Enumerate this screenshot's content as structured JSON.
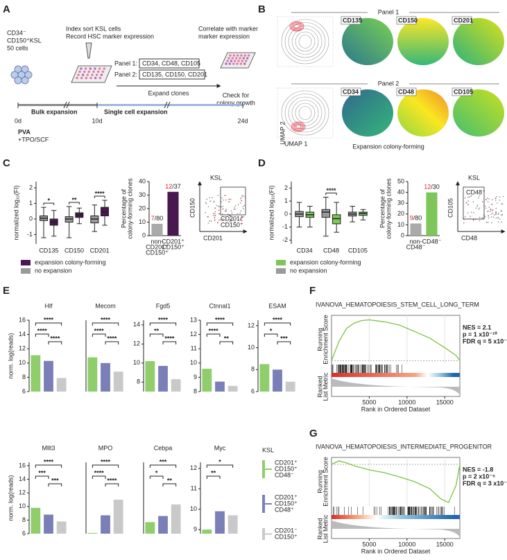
{
  "figure": {
    "panel_letters": [
      "A",
      "B",
      "C",
      "D",
      "E",
      "F",
      "G"
    ],
    "schematic": {
      "cells": [
        "CD34⁻",
        "CD150⁺KSL",
        "50 cells"
      ],
      "index_sort": "Index sort KSL cells",
      "record": "Record HSC marker expression",
      "panel1_label": "Panel 1:",
      "panel1_markers": "CD34, CD48, CD105",
      "panel2_label": "Panel 2:",
      "panel2_markers": "CD135, CD150, CD201",
      "expand": "Expand clones",
      "correlate": [
        "Correlate with marker",
        "marker expression"
      ],
      "check": [
        "Check for",
        "colony growth"
      ],
      "bulk": "Bulk expansion",
      "single": "Single cell expansion",
      "days": [
        "0d",
        "10d",
        "24d"
      ],
      "media": [
        "PVA",
        "+TPO/SCF"
      ]
    },
    "umap": {
      "panel1": "Panel 1",
      "panel1_markers": [
        "CD135",
        "CD150",
        "CD201"
      ],
      "panel2": "Panel 2",
      "panel2_markers": [
        "CD34",
        "CD48",
        "CD105"
      ],
      "y_label": "UMAP 2",
      "x_label": "UMAP 1",
      "caption": "Expansion colony-forming"
    },
    "gates": {
      "c": {
        "title": "KSL",
        "y_label": "CD150",
        "x_label": "CD201",
        "gate": [
          "CD201⁺",
          "CD150⁺"
        ]
      },
      "d": {
        "title": "KSL",
        "y_label": "CD105",
        "x_label": "CD48",
        "gate": [
          "CD48⁻"
        ]
      }
    },
    "e_legend": {
      "title": "KSL",
      "items": [
        [
          "CD201⁺",
          "CD150⁺",
          "CD48⁻"
        ],
        [
          "CD201⁺",
          "CD150⁺",
          "CD48⁺"
        ],
        [
          "CD201⁻",
          "CD150⁺"
        ]
      ],
      "colors": [
        "#8fce6a",
        "#7b7fb8",
        "#c9c9c9"
      ]
    }
  },
  "chart_data": [
    {
      "type": "box",
      "y_label": "normalized log₁₀(FI)",
      "categories": [
        "CD135",
        "CD150",
        "CD201"
      ],
      "series": [
        {
          "name": "no expansion",
          "color": "#9a9a9a",
          "min": [
            -1.2,
            -1.2,
            -0.8
          ],
          "q1": [
            -0.1,
            -0.2,
            -0.25
          ],
          "median": [
            0.05,
            0,
            0
          ],
          "q3": [
            0.2,
            0.15,
            0.2
          ],
          "max": [
            0.75,
            0.8,
            0.9
          ]
        },
        {
          "name": "expansion colony-forming",
          "color": "#4a1850",
          "min": [
            -1.1,
            -0.3,
            -0.4
          ],
          "q1": [
            -0.4,
            0.1,
            0.2
          ],
          "median": [
            -0.2,
            0.25,
            0.45
          ],
          "q3": [
            0,
            0.4,
            0.75
          ],
          "max": [
            0.55,
            0.7,
            1.2
          ]
        }
      ],
      "significance": [
        "*",
        "**",
        "****"
      ],
      "ylim": [
        -1.6,
        2.4
      ],
      "yticks": [
        -1,
        0,
        1,
        2
      ]
    },
    {
      "type": "bar",
      "y_label": [
        "Percentage of",
        "colony-forming clones"
      ],
      "categories": [
        [
          "non-",
          "CD201⁺",
          "CD150⁺"
        ],
        [
          "CD201⁺",
          "CD150⁺"
        ]
      ],
      "values": [
        8.75,
        32.43
      ],
      "value_labels": [
        "7/80",
        "12/37"
      ],
      "colors": [
        "#aaaaaa",
        "#4a1850"
      ],
      "ylim": [
        0,
        40
      ],
      "yticks": [
        0,
        10,
        20,
        30,
        40
      ]
    },
    {
      "type": "box",
      "y_label": "normalized log₁₀(FI)",
      "categories": [
        "CD34",
        "CD48",
        "CD105"
      ],
      "series": [
        {
          "name": "no expansion",
          "color": "#9a9a9a",
          "min": [
            -1.0,
            -1.7,
            -0.6
          ],
          "q1": [
            -0.2,
            -0.25,
            -0.15
          ],
          "median": [
            0,
            0.15,
            0
          ],
          "q3": [
            0.2,
            0.35,
            0.15
          ],
          "max": [
            0.9,
            1.3,
            0.6
          ]
        },
        {
          "name": "expansion colony-forming",
          "color": "#7cc65a",
          "min": [
            -1.0,
            -1.4,
            -0.45
          ],
          "q1": [
            -0.25,
            -0.75,
            -0.1
          ],
          "median": [
            -0.05,
            -0.35,
            0.05
          ],
          "q3": [
            0.15,
            -0.05,
            0.15
          ],
          "max": [
            0.6,
            0.9,
            0.35
          ]
        }
      ],
      "significance": [
        null,
        "****",
        null
      ],
      "ylim": [
        -2.3,
        2.5
      ],
      "yticks": [
        -2,
        -1,
        0,
        1,
        2
      ]
    },
    {
      "type": "bar",
      "y_label": [
        "Percentage of",
        "colony-forming clones"
      ],
      "categories": [
        [
          "non-",
          "CD48⁻"
        ],
        [
          "CD48⁻"
        ]
      ],
      "values": [
        11.25,
        40
      ],
      "value_labels": [
        "9/80",
        "12/30"
      ],
      "colors": [
        "#aaaaaa",
        "#7cc65a"
      ],
      "ylim": [
        0,
        50
      ],
      "yticks": [
        0,
        10,
        20,
        30,
        40,
        50
      ]
    },
    {
      "type": "bar",
      "title": "Hlf",
      "y_label": "norm. log(reads)",
      "values": [
        11.1,
        10.3,
        7.9
      ],
      "colors": [
        "#8fce6a",
        "#7b7fb8",
        "#c9c9c9"
      ],
      "ylim": [
        6,
        16
      ],
      "yticks": [
        6,
        8,
        10,
        12,
        14,
        16
      ],
      "significance": [
        {
          "pair": [
            0,
            1
          ],
          "label": "****"
        },
        {
          "pair": [
            1,
            2
          ],
          "label": "****"
        },
        {
          "pair": [
            0,
            2
          ],
          "label": "****"
        }
      ]
    },
    {
      "type": "bar",
      "title": "Mecom",
      "values": [
        10.8,
        10.0,
        8.8
      ],
      "colors": [
        "#8fce6a",
        "#7b7fb8",
        "#c9c9c9"
      ],
      "ylim": [
        6,
        16
      ],
      "significance": [
        {
          "pair": [
            0,
            1
          ],
          "label": "****"
        },
        {
          "pair": [
            1,
            2
          ],
          "label": "****"
        },
        {
          "pair": [
            0,
            2
          ],
          "label": "****"
        }
      ]
    },
    {
      "type": "bar",
      "title": "Fgd5",
      "values": [
        10.2,
        9.7,
        8.3
      ],
      "colors": [
        "#8fce6a",
        "#7b7fb8",
        "#c9c9c9"
      ],
      "ylim": [
        7,
        14.5
      ],
      "yticks": [
        8,
        10,
        12,
        14
      ],
      "significance": [
        {
          "pair": [
            0,
            1
          ],
          "label": "**"
        },
        {
          "pair": [
            1,
            2
          ],
          "label": "****"
        },
        {
          "pair": [
            0,
            2
          ],
          "label": "****"
        }
      ]
    },
    {
      "type": "bar",
      "title": "Ctnnal1",
      "values": [
        9.6,
        8.7,
        8.4
      ],
      "colors": [
        "#8fce6a",
        "#7b7fb8",
        "#c9c9c9"
      ],
      "ylim": [
        8,
        13
      ],
      "yticks": [
        8,
        9,
        10,
        11,
        12,
        13
      ],
      "significance": [
        {
          "pair": [
            0,
            1
          ],
          "label": "****"
        },
        {
          "pair": [
            1,
            2
          ],
          "label": "**"
        },
        {
          "pair": [
            0,
            2
          ],
          "label": "****"
        }
      ]
    },
    {
      "type": "bar",
      "title": "ESAM",
      "values": [
        8.5,
        8.0,
        6.9
      ],
      "colors": [
        "#8fce6a",
        "#7b7fb8",
        "#c9c9c9"
      ],
      "ylim": [
        6,
        12.5
      ],
      "yticks": [
        6,
        8,
        10,
        12
      ],
      "significance": [
        {
          "pair": [
            0,
            1
          ],
          "label": "*"
        },
        {
          "pair": [
            1,
            2
          ],
          "label": "***"
        },
        {
          "pair": [
            0,
            2
          ],
          "label": "****"
        }
      ]
    },
    {
      "type": "bar",
      "title": "Mllt3",
      "y_label": "norm. log(reads)",
      "values": [
        9.8,
        8.8,
        7.8
      ],
      "colors": [
        "#8fce6a",
        "#7b7fb8",
        "#c9c9c9"
      ],
      "ylim": [
        6,
        16.5
      ],
      "yticks": [
        6,
        8,
        10,
        12,
        14,
        16
      ],
      "significance": [
        {
          "pair": [
            0,
            1
          ],
          "label": "***"
        },
        {
          "pair": [
            1,
            2
          ],
          "label": "***"
        },
        {
          "pair": [
            0,
            2
          ],
          "label": "****"
        }
      ]
    },
    {
      "type": "bar",
      "title": "MPO",
      "values": [
        6.1,
        8.7,
        11.0
      ],
      "colors": [
        "#8fce6a",
        "#7b7fb8",
        "#c9c9c9"
      ],
      "ylim": [
        6,
        16.5
      ],
      "significance": [
        {
          "pair": [
            0,
            1
          ],
          "label": "****"
        },
        {
          "pair": [
            1,
            2
          ],
          "label": "****"
        },
        {
          "pair": [
            0,
            2
          ],
          "label": "****"
        }
      ]
    },
    {
      "type": "bar",
      "title": "Cebpa",
      "values": [
        7.7,
        8.6,
        10.3
      ],
      "colors": [
        "#8fce6a",
        "#7b7fb8",
        "#c9c9c9"
      ],
      "ylim": [
        6,
        16.5
      ],
      "significance": [
        {
          "pair": [
            0,
            1
          ],
          "label": "*"
        },
        {
          "pair": [
            1,
            2
          ],
          "label": "**"
        },
        {
          "pair": [
            0,
            2
          ],
          "label": "***"
        }
      ]
    },
    {
      "type": "bar",
      "title": "Myc",
      "values": [
        9.0,
        9.9,
        9.7
      ],
      "colors": [
        "#8fce6a",
        "#7b7fb8",
        "#c9c9c9"
      ],
      "ylim": [
        8.8,
        12.3
      ],
      "yticks": [
        9,
        10,
        11,
        12
      ],
      "significance": [
        {
          "pair": [
            0,
            1
          ],
          "label": "**"
        },
        {
          "pair": [
            0,
            2
          ],
          "label": "*"
        }
      ]
    },
    {
      "type": "line",
      "title": "IVANOVA_HEMATOPOIESIS_STEM_CELL_LONG_TERM",
      "y_label": [
        "Running",
        "Enrichment Score"
      ],
      "metric_label": [
        "Ranked",
        "List Metric"
      ],
      "x_label": "Rank in Ordered Dataset",
      "x": [
        0,
        1000,
        2000,
        3000,
        4000,
        5000,
        7000,
        9000,
        11000,
        13000,
        15000,
        16500,
        17000
      ],
      "values": [
        0,
        0.3,
        0.5,
        0.58,
        0.62,
        0.63,
        0.6,
        0.55,
        0.45,
        0.35,
        0.2,
        0.08,
        0
      ],
      "color": "#7cc242",
      "xlim": [
        0,
        17000
      ],
      "xticks": [
        5000,
        10000,
        15000
      ],
      "ylim": [
        -0.05,
        0.7
      ],
      "stats": [
        "NES = 2.1",
        "p = 1 x10⁻¹⁰",
        "FDR q = 5 x10⁻⁹"
      ]
    },
    {
      "type": "line",
      "title": "IVANOVA_HEMATOPOIESIS_INTERMEDIATE_PROGENITOR",
      "y_label": [
        "Running",
        "Enrichment Score"
      ],
      "metric_label": [
        "Ranked",
        "List Metric"
      ],
      "x_label": "Rank in Ordered Dataset",
      "x": [
        0,
        1000,
        2000,
        3000,
        4000,
        5000,
        7000,
        9000,
        11000,
        13000,
        14500,
        15500,
        16500,
        17000
      ],
      "values": [
        0,
        0.05,
        0.02,
        -0.02,
        -0.05,
        -0.08,
        -0.12,
        -0.18,
        -0.25,
        -0.35,
        -0.5,
        -0.55,
        -0.3,
        0
      ],
      "color": "#7cc242",
      "xlim": [
        0,
        17000
      ],
      "xticks": [
        5000,
        10000,
        15000
      ],
      "ylim": [
        -0.6,
        0.1
      ],
      "stats": [
        "NES = -1.8",
        "p = 2 x10⁻⁵",
        "FDR q = 3 x10⁻⁵"
      ]
    }
  ]
}
